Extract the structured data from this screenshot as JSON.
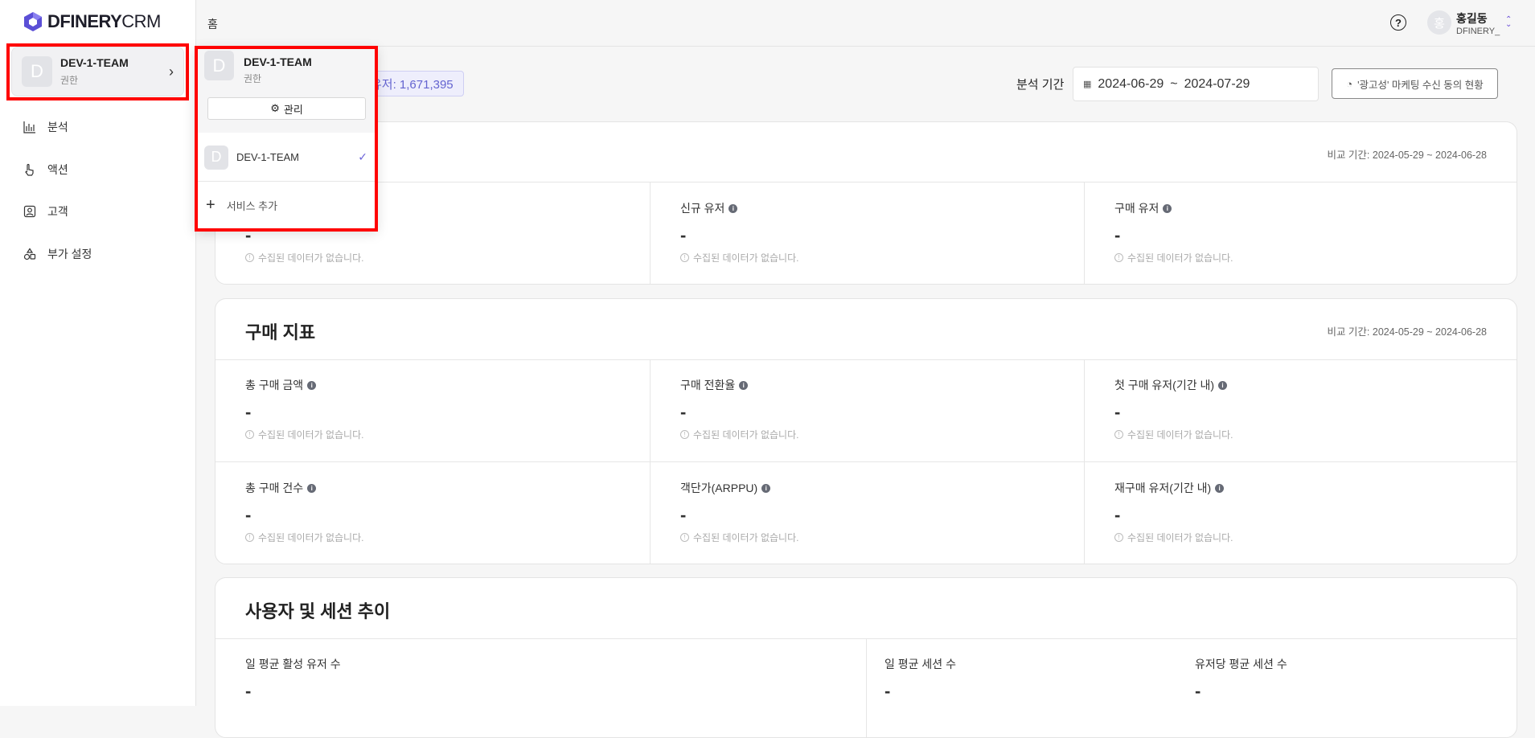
{
  "app": {
    "logo_text": "DFINERY",
    "logo_suffix": "CRM",
    "brand_color": "#5b4fd6"
  },
  "sidebar": {
    "team": {
      "avatar": "D",
      "name": "DEV-1-TEAM",
      "role": "권한"
    },
    "items": [
      {
        "label": "분석",
        "icon": "bar-chart-icon"
      },
      {
        "label": "액션",
        "icon": "pointer-hand-icon"
      },
      {
        "label": "고객",
        "icon": "user-card-icon"
      },
      {
        "label": "부가 설정",
        "icon": "shapes-icon"
      }
    ]
  },
  "dropdown": {
    "current": {
      "avatar": "D",
      "name": "DEV-1-TEAM",
      "role": "권한"
    },
    "manage_label": "관리",
    "services": [
      {
        "avatar": "D",
        "name": "DEV-1-TEAM",
        "selected": true
      }
    ],
    "add_label": "서비스 추가"
  },
  "header": {
    "breadcrumb": "홈",
    "help": "?",
    "user": {
      "avatar": "홍",
      "name": "홍길동",
      "org": "DFINERY_"
    }
  },
  "toolbar": {
    "badge": "동 유저: 1,671,395",
    "period_label": "분석 기간",
    "date_start": "2024-06-29",
    "date_sep": "~",
    "date_end": "2024-07-29",
    "marketing_button": "'광고성' 마케팅 수신 동의 현황"
  },
  "no_data": "수집된 데이터가 없습니다.",
  "card1": {
    "compare": "비교 기간: 2024-05-29 ~ 2024-06-28",
    "metrics": [
      {
        "label": "",
        "value": "-"
      },
      {
        "label": "신규 유저",
        "value": "-"
      },
      {
        "label": "구매 유저",
        "value": "-"
      }
    ]
  },
  "card2": {
    "title": "구매 지표",
    "compare": "비교 기간: 2024-05-29 ~ 2024-06-28",
    "metrics": [
      {
        "label": "총 구매 금액",
        "value": "-"
      },
      {
        "label": "구매 전환율",
        "value": "-"
      },
      {
        "label": "첫 구매 유저(기간 내)",
        "value": "-"
      },
      {
        "label": "총 구매 건수",
        "value": "-"
      },
      {
        "label": "객단가(ARPPU)",
        "value": "-"
      },
      {
        "label": "재구매 유저(기간 내)",
        "value": "-"
      }
    ]
  },
  "card3": {
    "title": "사용자 및 세션 추이",
    "metrics": [
      {
        "label": "일 평균 활성 유저 수",
        "value": "-"
      },
      {
        "label": "일 평균 세션 수",
        "value": "-"
      },
      {
        "label": "유저당 평균 세션 수",
        "value": "-"
      }
    ]
  }
}
